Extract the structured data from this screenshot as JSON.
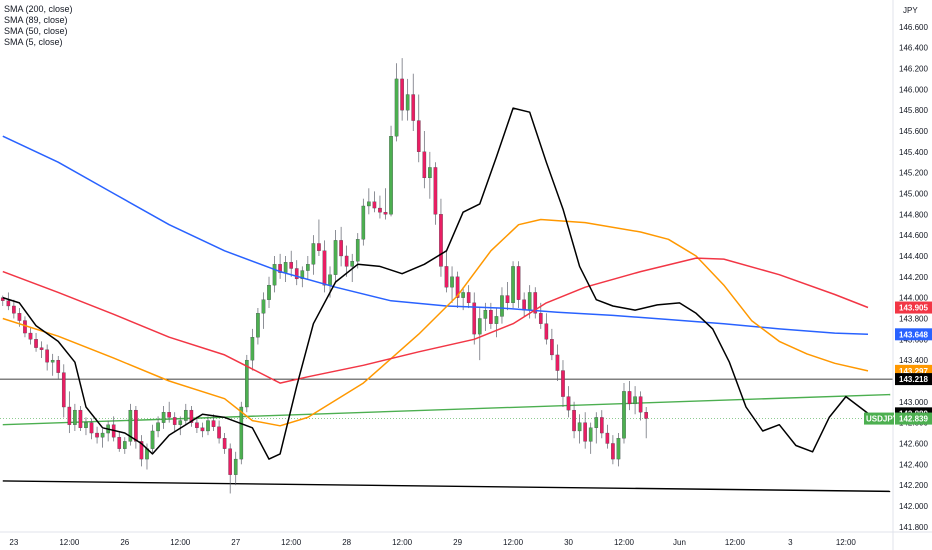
{
  "legend": {
    "items": [
      "SMA (200, close)",
      "SMA (89, close)",
      "SMA (50, close)",
      "SMA (5, close)"
    ]
  },
  "currency": "JPY",
  "colors": {
    "up": "#26a69a",
    "up_body": "#4caf50",
    "down": "#e91e63",
    "sma200": "#2962ff",
    "sma89": "#ff9800",
    "sma50": "#f23645",
    "sma5": "#000000",
    "trend_green": "#4caf50",
    "trend_black": "#000000"
  },
  "chart_data": {
    "type": "candlestick",
    "symbol": "USDJPY",
    "yticks": [
      "146.600",
      "146.400",
      "146.200",
      "146.000",
      "145.800",
      "145.600",
      "145.400",
      "145.200",
      "145.000",
      "144.800",
      "144.600",
      "144.400",
      "144.200",
      "144.000",
      "143.800",
      "143.600",
      "143.400",
      "143.200",
      "143.000",
      "142.800",
      "142.600",
      "142.400",
      "142.200",
      "142.000",
      "141.800"
    ],
    "ylim": [
      141.75,
      146.8
    ],
    "xticks": [
      {
        "label": "23",
        "i": 2
      },
      {
        "label": "12:00",
        "i": 12
      },
      {
        "label": "26",
        "i": 22
      },
      {
        "label": "12:00",
        "i": 32
      },
      {
        "label": "27",
        "i": 42
      },
      {
        "label": "12:00",
        "i": 52
      },
      {
        "label": "28",
        "i": 62
      },
      {
        "label": "12:00",
        "i": 72
      },
      {
        "label": "29",
        "i": 82
      },
      {
        "label": "12:00",
        "i": 92
      },
      {
        "label": "30",
        "i": 102
      },
      {
        "label": "12:00",
        "i": 112
      },
      {
        "label": "Jun",
        "i": 122
      },
      {
        "label": "12:00",
        "i": 132
      },
      {
        "label": "3",
        "i": 142
      },
      {
        "label": "12:00",
        "i": 152
      }
    ],
    "price_tags": [
      {
        "label": "143.905",
        "value": 143.905,
        "color": "#f23645"
      },
      {
        "label": "143.648",
        "value": 143.648,
        "color": "#2962ff"
      },
      {
        "label": "143.297",
        "value": 143.297,
        "color": "#ff9800"
      },
      {
        "label": "143.218",
        "value": 143.218,
        "color": "#000000"
      },
      {
        "label": "142.889",
        "value": 142.889,
        "color": "#000000"
      },
      {
        "label": "142.839",
        "value": 142.839,
        "color": "#4caf50",
        "symbol": "USDJPY"
      }
    ],
    "hline": 143.218,
    "trendlines": [
      {
        "name": "support",
        "from": [
          0,
          142.24
        ],
        "to": [
          160,
          142.14
        ]
      },
      {
        "name": "rising",
        "from": [
          0,
          142.78
        ],
        "to": [
          160,
          143.07
        ]
      }
    ],
    "sma_levels": {
      "sma200": [
        [
          0,
          145.55
        ],
        [
          10,
          145.3
        ],
        [
          20,
          145.0
        ],
        [
          30,
          144.7
        ],
        [
          40,
          144.45
        ],
        [
          50,
          144.25
        ],
        [
          60,
          144.1
        ],
        [
          70,
          143.97
        ],
        [
          80,
          143.92
        ],
        [
          90,
          143.9
        ],
        [
          100,
          143.86
        ],
        [
          110,
          143.83
        ],
        [
          120,
          143.79
        ],
        [
          130,
          143.75
        ],
        [
          140,
          143.7
        ],
        [
          150,
          143.66
        ],
        [
          156,
          143.648
        ]
      ],
      "sma89": [
        [
          0,
          143.8
        ],
        [
          10,
          143.63
        ],
        [
          20,
          143.42
        ],
        [
          30,
          143.2
        ],
        [
          40,
          143.03
        ],
        [
          45,
          142.82
        ],
        [
          50,
          142.77
        ],
        [
          55,
          142.85
        ],
        [
          65,
          143.18
        ],
        [
          75,
          143.65
        ],
        [
          82,
          144.02
        ],
        [
          88,
          144.45
        ],
        [
          93,
          144.7
        ],
        [
          97,
          144.75
        ],
        [
          105,
          144.72
        ],
        [
          115,
          144.63
        ],
        [
          120,
          144.56
        ],
        [
          125,
          144.4
        ],
        [
          130,
          144.12
        ],
        [
          135,
          143.78
        ],
        [
          140,
          143.58
        ],
        [
          145,
          143.46
        ],
        [
          150,
          143.37
        ],
        [
          156,
          143.297
        ]
      ],
      "sma50": [
        [
          0,
          144.25
        ],
        [
          10,
          144.05
        ],
        [
          20,
          143.84
        ],
        [
          30,
          143.62
        ],
        [
          40,
          143.45
        ],
        [
          50,
          143.18
        ],
        [
          55,
          143.24
        ],
        [
          65,
          143.35
        ],
        [
          75,
          143.48
        ],
        [
          85,
          143.6
        ],
        [
          92,
          143.75
        ],
        [
          98,
          143.95
        ],
        [
          105,
          144.1
        ],
        [
          115,
          144.25
        ],
        [
          125,
          144.38
        ],
        [
          130,
          144.37
        ],
        [
          140,
          144.22
        ],
        [
          150,
          144.03
        ],
        [
          156,
          143.905
        ]
      ],
      "sma5": [
        [
          0,
          144.0
        ],
        [
          3,
          143.95
        ],
        [
          6,
          143.73
        ],
        [
          10,
          143.58
        ],
        [
          13,
          143.38
        ],
        [
          15,
          142.95
        ],
        [
          18,
          142.75
        ],
        [
          22,
          142.7
        ],
        [
          25,
          142.6
        ],
        [
          27,
          142.5
        ],
        [
          30,
          142.68
        ],
        [
          33,
          142.78
        ],
        [
          36,
          142.88
        ],
        [
          40,
          142.85
        ],
        [
          45,
          142.75
        ],
        [
          48,
          142.45
        ],
        [
          50,
          142.5
        ],
        [
          53,
          143.15
        ],
        [
          56,
          143.75
        ],
        [
          60,
          144.15
        ],
        [
          64,
          144.32
        ],
        [
          68,
          144.3
        ],
        [
          72,
          144.23
        ],
        [
          76,
          144.32
        ],
        [
          80,
          144.45
        ],
        [
          83,
          144.82
        ],
        [
          86,
          144.9
        ],
        [
          89,
          145.35
        ],
        [
          92,
          145.82
        ],
        [
          95,
          145.78
        ],
        [
          98,
          145.3
        ],
        [
          101,
          144.85
        ],
        [
          104,
          144.3
        ],
        [
          107,
          143.98
        ],
        [
          110,
          143.92
        ],
        [
          114,
          143.88
        ],
        [
          118,
          143.93
        ],
        [
          122,
          143.95
        ],
        [
          125,
          143.85
        ],
        [
          128,
          143.7
        ],
        [
          131,
          143.38
        ],
        [
          134,
          142.95
        ],
        [
          137,
          142.72
        ],
        [
          140,
          142.78
        ],
        [
          143,
          142.58
        ],
        [
          146,
          142.52
        ],
        [
          149,
          142.85
        ],
        [
          152,
          143.05
        ],
        [
          156,
          142.889
        ]
      ]
    },
    "candles": [
      [
        144.0,
        144.02,
        143.92,
        143.97
      ],
      [
        143.97,
        144.05,
        143.88,
        143.92
      ],
      [
        143.92,
        143.98,
        143.8,
        143.85
      ],
      [
        143.85,
        143.9,
        143.72,
        143.78
      ],
      [
        143.78,
        143.82,
        143.62,
        143.66
      ],
      [
        143.66,
        143.72,
        143.55,
        143.6
      ],
      [
        143.6,
        143.66,
        143.48,
        143.52
      ],
      [
        143.52,
        143.58,
        143.42,
        143.5
      ],
      [
        143.5,
        143.55,
        143.3,
        143.38
      ],
      [
        143.38,
        143.46,
        143.25,
        143.4
      ],
      [
        143.4,
        143.44,
        143.22,
        143.28
      ],
      [
        143.28,
        143.36,
        142.85,
        142.95
      ],
      [
        142.95,
        143.1,
        142.7,
        142.78
      ],
      [
        142.78,
        142.98,
        142.72,
        142.92
      ],
      [
        142.92,
        142.96,
        142.72,
        142.75
      ],
      [
        142.75,
        142.85,
        142.68,
        142.8
      ],
      [
        142.8,
        142.84,
        142.64,
        142.7
      ],
      [
        142.7,
        142.76,
        142.6,
        142.66
      ],
      [
        142.66,
        142.74,
        142.56,
        142.7
      ],
      [
        142.7,
        142.82,
        142.62,
        142.78
      ],
      [
        142.78,
        142.86,
        142.62,
        142.66
      ],
      [
        142.66,
        142.72,
        142.52,
        142.55
      ],
      [
        142.55,
        142.66,
        142.5,
        142.62
      ],
      [
        142.62,
        142.98,
        142.58,
        142.92
      ],
      [
        142.92,
        142.96,
        142.55,
        142.62
      ],
      [
        142.62,
        142.68,
        142.38,
        142.45
      ],
      [
        142.45,
        142.6,
        142.35,
        142.55
      ],
      [
        142.55,
        142.78,
        142.5,
        142.72
      ],
      [
        142.72,
        142.86,
        142.66,
        142.8
      ],
      [
        142.8,
        142.96,
        142.74,
        142.9
      ],
      [
        142.9,
        143.0,
        142.8,
        142.85
      ],
      [
        142.85,
        142.9,
        142.72,
        142.78
      ],
      [
        142.78,
        142.86,
        142.68,
        142.82
      ],
      [
        142.82,
        142.98,
        142.78,
        142.92
      ],
      [
        142.92,
        142.96,
        142.76,
        142.8
      ],
      [
        142.8,
        142.86,
        142.7,
        142.75
      ],
      [
        142.75,
        142.8,
        142.66,
        142.72
      ],
      [
        142.72,
        142.86,
        142.68,
        142.82
      ],
      [
        142.82,
        142.88,
        142.72,
        142.76
      ],
      [
        142.76,
        142.82,
        142.6,
        142.65
      ],
      [
        142.65,
        142.7,
        142.5,
        142.55
      ],
      [
        142.55,
        142.6,
        142.12,
        142.3
      ],
      [
        142.3,
        142.52,
        142.2,
        142.45
      ],
      [
        142.45,
        143.0,
        142.4,
        142.95
      ],
      [
        142.95,
        143.45,
        142.9,
        143.4
      ],
      [
        143.4,
        143.7,
        143.3,
        143.62
      ],
      [
        143.62,
        143.9,
        143.55,
        143.85
      ],
      [
        143.85,
        144.05,
        143.7,
        143.98
      ],
      [
        143.98,
        144.2,
        143.9,
        144.12
      ],
      [
        144.12,
        144.4,
        144.05,
        144.32
      ],
      [
        144.32,
        144.42,
        144.18,
        144.24
      ],
      [
        144.24,
        144.4,
        144.15,
        144.34
      ],
      [
        144.34,
        144.45,
        144.2,
        144.28
      ],
      [
        144.28,
        144.36,
        144.12,
        144.18
      ],
      [
        144.18,
        144.3,
        144.1,
        144.26
      ],
      [
        144.26,
        144.4,
        144.18,
        144.32
      ],
      [
        144.32,
        144.6,
        144.22,
        144.52
      ],
      [
        144.52,
        144.75,
        144.4,
        144.45
      ],
      [
        144.45,
        144.55,
        144.05,
        144.12
      ],
      [
        144.12,
        144.3,
        144.0,
        144.22
      ],
      [
        144.22,
        144.65,
        144.15,
        144.55
      ],
      [
        144.55,
        144.68,
        144.3,
        144.4
      ],
      [
        144.4,
        144.5,
        144.2,
        144.3
      ],
      [
        144.3,
        144.42,
        144.15,
        144.35
      ],
      [
        144.35,
        144.62,
        144.28,
        144.56
      ],
      [
        144.56,
        144.95,
        144.5,
        144.88
      ],
      [
        144.88,
        145.05,
        144.8,
        144.92
      ],
      [
        144.92,
        145.02,
        144.82,
        144.86
      ],
      [
        144.86,
        144.98,
        144.76,
        144.82
      ],
      [
        144.82,
        145.05,
        144.75,
        144.8
      ],
      [
        144.8,
        145.65,
        144.78,
        145.55
      ],
      [
        145.55,
        146.25,
        145.5,
        146.1
      ],
      [
        146.1,
        146.3,
        145.7,
        145.8
      ],
      [
        145.8,
        146.1,
        145.7,
        145.95
      ],
      [
        145.95,
        146.15,
        145.6,
        145.7
      ],
      [
        145.7,
        145.95,
        145.3,
        145.4
      ],
      [
        145.4,
        145.6,
        145.05,
        145.15
      ],
      [
        145.15,
        145.4,
        144.95,
        145.25
      ],
      [
        145.25,
        145.3,
        144.7,
        144.8
      ],
      [
        144.8,
        144.95,
        144.2,
        144.3
      ],
      [
        144.3,
        144.45,
        144.05,
        144.1
      ],
      [
        144.1,
        144.3,
        143.95,
        144.2
      ],
      [
        144.2,
        144.25,
        143.9,
        144.0
      ],
      [
        144.0,
        144.1,
        143.88,
        144.05
      ],
      [
        144.05,
        144.12,
        143.9,
        143.95
      ],
      [
        143.95,
        144.05,
        143.55,
        143.65
      ],
      [
        143.65,
        143.9,
        143.4,
        143.8
      ],
      [
        143.8,
        143.95,
        143.68,
        143.88
      ],
      [
        143.88,
        143.95,
        143.7,
        143.75
      ],
      [
        143.75,
        143.9,
        143.62,
        143.82
      ],
      [
        143.82,
        144.1,
        143.75,
        144.02
      ],
      [
        144.02,
        144.15,
        143.88,
        143.95
      ],
      [
        143.95,
        144.35,
        143.9,
        144.3
      ],
      [
        144.3,
        144.35,
        143.9,
        143.98
      ],
      [
        143.98,
        144.05,
        143.82,
        143.88
      ],
      [
        143.88,
        144.12,
        143.8,
        144.05
      ],
      [
        144.05,
        144.1,
        143.8,
        143.85
      ],
      [
        143.85,
        143.95,
        143.7,
        143.75
      ],
      [
        143.75,
        143.85,
        143.55,
        143.6
      ],
      [
        143.6,
        143.7,
        143.4,
        143.45
      ],
      [
        143.45,
        143.55,
        143.2,
        143.3
      ],
      [
        143.3,
        143.4,
        142.95,
        143.05
      ],
      [
        143.05,
        143.15,
        142.85,
        142.92
      ],
      [
        142.92,
        143.0,
        142.65,
        142.72
      ],
      [
        142.72,
        142.88,
        142.6,
        142.8
      ],
      [
        142.8,
        142.9,
        142.55,
        142.62
      ],
      [
        142.62,
        142.8,
        142.5,
        142.75
      ],
      [
        142.75,
        142.9,
        142.6,
        142.85
      ],
      [
        142.85,
        142.92,
        142.65,
        142.7
      ],
      [
        142.7,
        142.78,
        142.55,
        142.6
      ],
      [
        142.6,
        142.68,
        142.4,
        142.45
      ],
      [
        142.45,
        142.7,
        142.38,
        142.65
      ],
      [
        142.65,
        143.18,
        142.6,
        143.1
      ],
      [
        143.1,
        143.2,
        142.92,
        142.98
      ],
      [
        142.98,
        143.15,
        142.88,
        143.05
      ],
      [
        143.05,
        143.1,
        142.82,
        142.9
      ],
      [
        142.9,
        142.95,
        142.65,
        142.84
      ]
    ]
  }
}
